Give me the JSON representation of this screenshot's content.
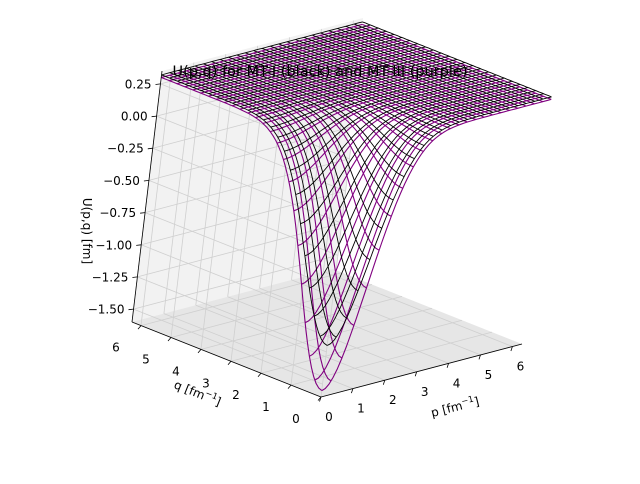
{
  "chart_data": {
    "type": "surface3d",
    "title": "U(p,q) for MT-I (black) and MT-III (purple)",
    "xlabel": "p [fm$^{-1}$]",
    "xlabel_base": "p [fm",
    "xlabel_sup": "−1",
    "xlabel_tail": "]",
    "ylabel": "q [fm$^{-1}$]",
    "ylabel_base": "q [fm",
    "ylabel_sup": "−1",
    "ylabel_tail": "]",
    "zlabel": "U(p,q) [fm]",
    "xlim": [
      0,
      6.3
    ],
    "ylim": [
      0,
      6.3
    ],
    "zlim": [
      -1.6,
      0.35
    ],
    "xticks": [
      0,
      1,
      2,
      3,
      4,
      5,
      6
    ],
    "yticks": [
      0,
      1,
      2,
      3,
      4,
      5,
      6
    ],
    "zticks": [
      0.25,
      0.0,
      -0.25,
      -0.5,
      -0.75,
      -1.0,
      -1.25,
      -1.5
    ],
    "zticklabels": [
      "0.25",
      "0.00",
      "−0.25",
      "−0.50",
      "−0.75",
      "−1.00",
      "−1.25",
      "−1.50"
    ],
    "series": [
      {
        "name": "MT-III",
        "color": "#800080",
        "min_value": -1.55,
        "plateau_value": 0.3
      },
      {
        "name": "MT-I",
        "color": "#000000",
        "min_value": -1.2,
        "plateau_value": 0.32
      }
    ]
  },
  "style": {
    "pane_color": "#f2f2f2",
    "pane_color_dark": "#e6e6e6",
    "grid_color": "#cfcfcf"
  }
}
